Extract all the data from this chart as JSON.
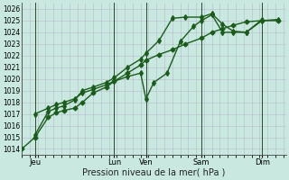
{
  "xlabel": "Pression niveau de la mer( hPa )",
  "bg_color": "#c8e8e0",
  "grid_color_h": "#b8b8cc",
  "grid_color_v": "#b8b8cc",
  "line_color": "#1a5c1a",
  "ylim": [
    1013.5,
    1026.5
  ],
  "xlim": [
    0,
    100
  ],
  "yticks": [
    1014,
    1015,
    1016,
    1017,
    1018,
    1019,
    1020,
    1021,
    1022,
    1023,
    1024,
    1025,
    1026
  ],
  "day_positions": [
    5,
    35,
    47,
    68,
    91
  ],
  "day_labels": [
    "Jeu",
    "Lun",
    "Ven",
    "Sam",
    "Dim"
  ],
  "vline_dark": [
    5,
    35,
    47,
    68,
    91
  ],
  "series1": {
    "x": [
      0,
      5,
      10,
      13,
      16,
      20,
      23,
      27,
      32,
      35,
      40,
      45,
      47,
      52,
      57,
      62,
      68,
      72,
      76,
      80,
      85,
      91,
      97
    ],
    "y": [
      1014.0,
      1015.0,
      1016.7,
      1017.1,
      1017.3,
      1017.5,
      1018.0,
      1018.8,
      1019.3,
      1019.8,
      1020.5,
      1021.2,
      1021.6,
      1022.1,
      1022.5,
      1023.0,
      1023.5,
      1024.0,
      1024.3,
      1024.6,
      1024.9,
      1025.0,
      1025.0
    ],
    "marker": "D",
    "ms": 2.5,
    "lw": 1.0
  },
  "series2": {
    "x": [
      5,
      10,
      13,
      16,
      20,
      23,
      27,
      32,
      35,
      40,
      45,
      47,
      52,
      57,
      62,
      68,
      72,
      76,
      80,
      85,
      91
    ],
    "y": [
      1015.2,
      1017.2,
      1017.5,
      1017.7,
      1018.2,
      1019.0,
      1019.3,
      1019.7,
      1020.1,
      1021.0,
      1021.7,
      1022.2,
      1023.3,
      1025.2,
      1025.3,
      1025.3,
      1025.6,
      1024.7,
      1024.1,
      1024.0,
      1025.1
    ],
    "marker": "d",
    "ms": 3.0,
    "lw": 1.0
  },
  "series3": {
    "x": [
      5,
      10,
      13,
      16,
      20,
      23,
      27,
      32,
      35,
      40,
      45,
      47,
      50,
      55,
      60,
      65,
      68,
      72,
      76,
      80,
      85,
      91,
      97
    ],
    "y": [
      1017.0,
      1017.5,
      1017.8,
      1018.0,
      1018.3,
      1018.8,
      1019.1,
      1019.5,
      1019.8,
      1020.2,
      1020.5,
      1018.3,
      1019.7,
      1020.5,
      1023.2,
      1024.5,
      1025.0,
      1025.5,
      1024.0,
      1024.0,
      1024.0,
      1025.0,
      1025.1
    ],
    "marker": "d",
    "ms": 3.0,
    "lw": 1.0
  }
}
